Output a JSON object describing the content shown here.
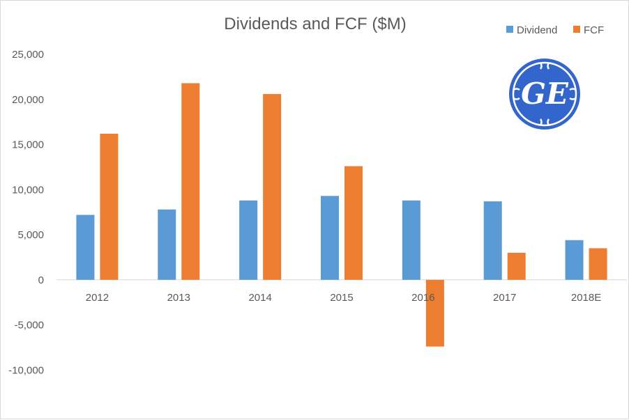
{
  "chart_data": {
    "type": "bar",
    "title": "Dividends and FCF ($M)",
    "categories": [
      "2012",
      "2013",
      "2014",
      "2015",
      "2016",
      "2017",
      "2018E"
    ],
    "series": [
      {
        "name": "Dividend",
        "color": "#5B9BD5",
        "values": [
          7200,
          7800,
          8800,
          9300,
          8800,
          8700,
          4400
        ]
      },
      {
        "name": "FCF",
        "color": "#ED7D31",
        "values": [
          16200,
          21800,
          20600,
          12600,
          -7400,
          3000,
          3500
        ]
      }
    ],
    "yticks": [
      "25,000",
      "20,000",
      "15,000",
      "10,000",
      "5,000",
      "0",
      "-5,000",
      "-10,000"
    ],
    "ylim": [
      -15000,
      25000
    ],
    "legend_position": "top-right",
    "grid": false
  },
  "logo": {
    "text": "GE",
    "color": "#3366CC",
    "icon": "ge-logo-icon"
  }
}
